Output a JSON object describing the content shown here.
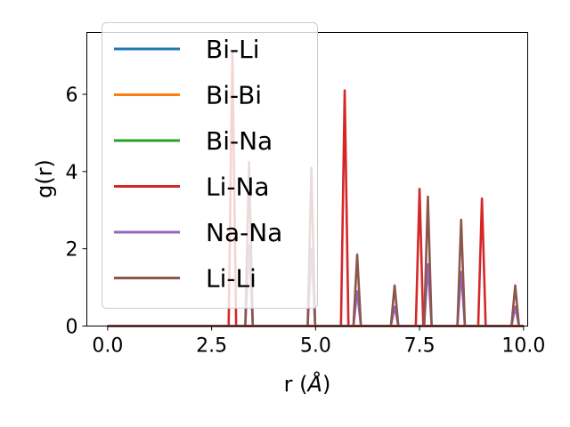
{
  "chart_data": {
    "type": "line",
    "xlabel": "r (",
    "xlabel_unit": "Å",
    "xlabel_close": ")",
    "ylabel": "g(r)",
    "xlim": [
      -0.5,
      10.1
    ],
    "ylim": [
      0,
      7.6
    ],
    "x_ticks": [
      0.0,
      2.5,
      5.0,
      7.5,
      10.0
    ],
    "x_tick_labels": [
      "0.0",
      "2.5",
      "5.0",
      "7.5",
      "10.0"
    ],
    "y_ticks": [
      0,
      2,
      4,
      6
    ],
    "y_tick_labels": [
      "0",
      "2",
      "4",
      "6"
    ],
    "grid": false,
    "legend_position": "upper-left",
    "series": [
      {
        "name": "Bi-Li",
        "color": "#1f77b4",
        "peaks": []
      },
      {
        "name": "Bi-Bi",
        "color": "#ff7f0e",
        "peaks": []
      },
      {
        "name": "Bi-Na",
        "color": "#2ca02c",
        "peaks": []
      },
      {
        "name": "Li-Na",
        "color": "#d62728",
        "peaks": [
          [
            3.0,
            7.1
          ],
          [
            5.7,
            6.1
          ],
          [
            7.5,
            3.55
          ],
          [
            9.0,
            3.3
          ]
        ]
      },
      {
        "name": "Na-Na",
        "color": "#9467bd",
        "peaks": [
          [
            3.4,
            2.1
          ],
          [
            4.9,
            2.0
          ],
          [
            6.0,
            0.9
          ],
          [
            6.9,
            0.5
          ],
          [
            7.7,
            1.6
          ],
          [
            8.5,
            1.4
          ],
          [
            9.8,
            0.5
          ]
        ]
      },
      {
        "name": "Li-Li",
        "color": "#8c564b",
        "peaks": [
          [
            3.4,
            4.25
          ],
          [
            4.9,
            4.1
          ],
          [
            6.0,
            1.85
          ],
          [
            6.9,
            1.05
          ],
          [
            7.7,
            3.35
          ],
          [
            8.5,
            2.75
          ],
          [
            9.8,
            1.05
          ]
        ]
      }
    ]
  }
}
